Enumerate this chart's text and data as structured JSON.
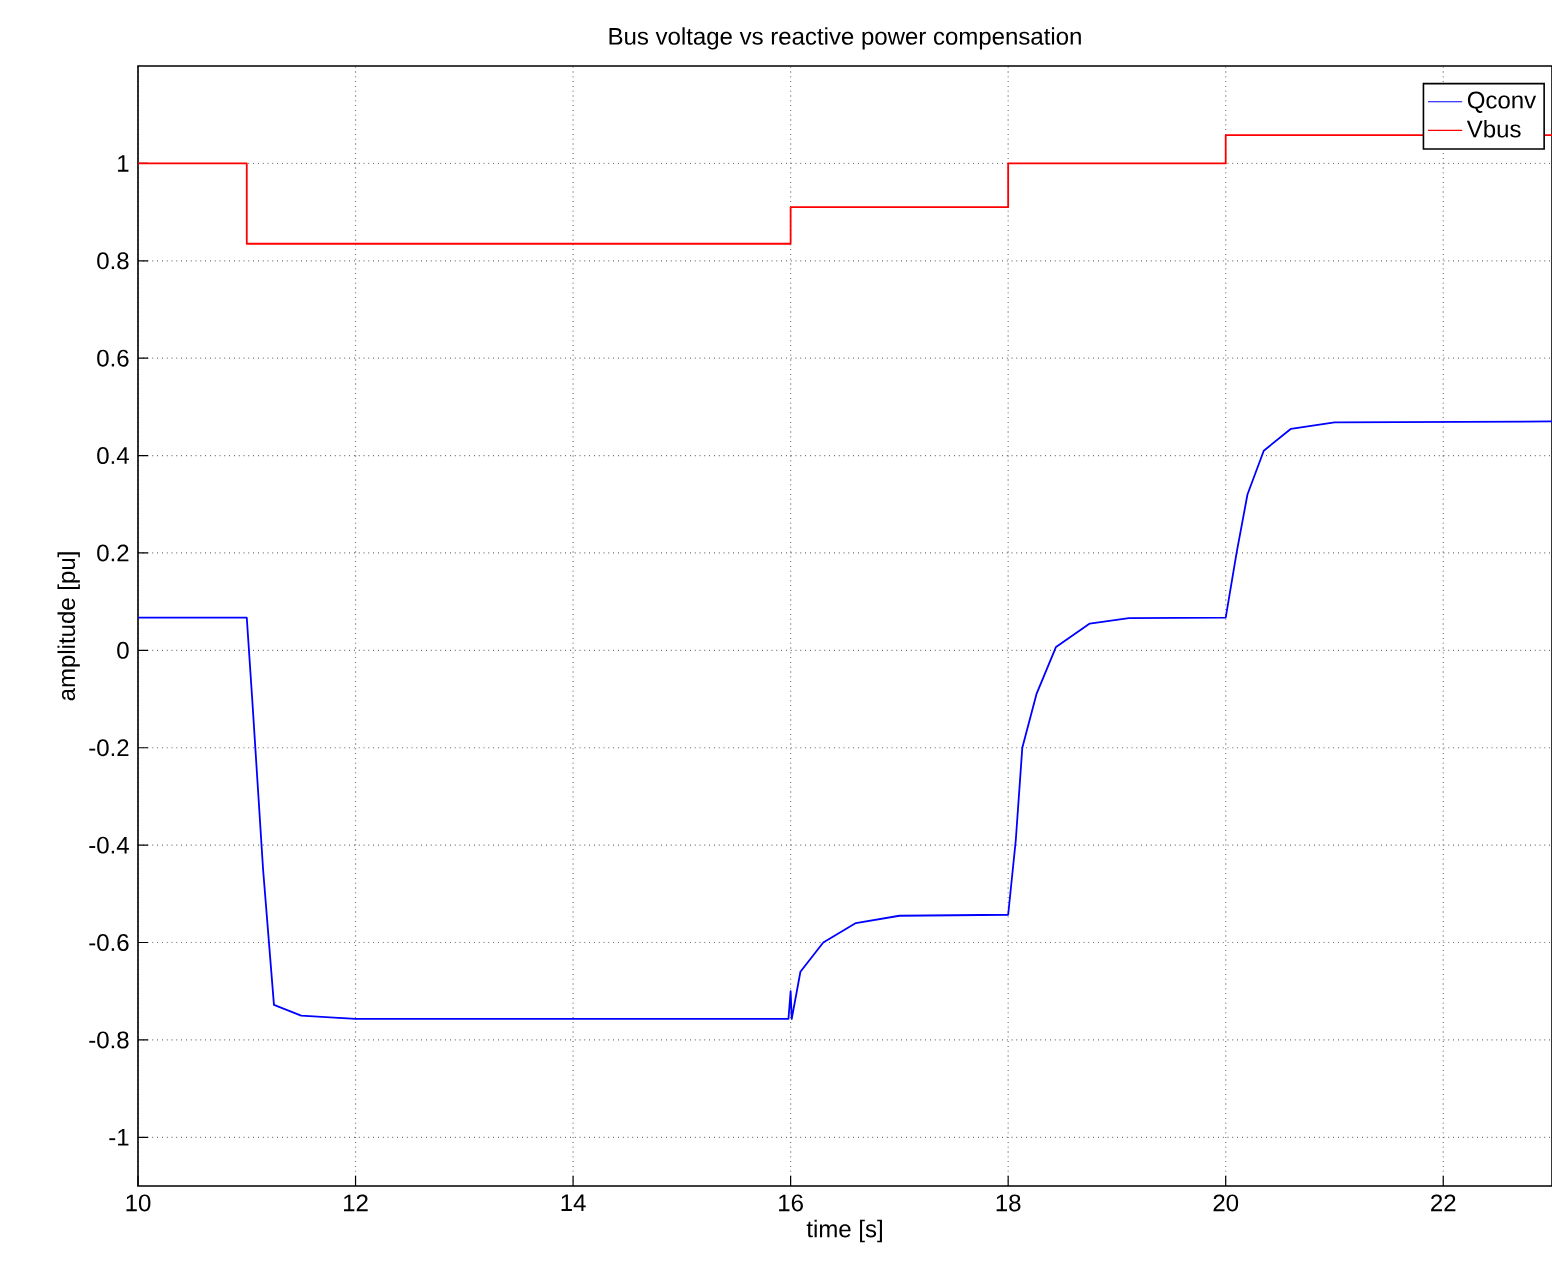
{
  "chart_data": {
    "type": "line",
    "title": "Bus voltage vs reactive power compensation",
    "xlabel": "time [s]",
    "ylabel": "amplitude [pu]",
    "xlim": [
      10,
      23
    ],
    "ylim": [
      -1.1,
      1.2
    ],
    "xticks": [
      10,
      12,
      14,
      16,
      18,
      20,
      22
    ],
    "yticks": [
      -1,
      -0.8,
      -0.6,
      -0.4,
      -0.2,
      0,
      0.2,
      0.4,
      0.6,
      0.8,
      1
    ],
    "grid": true,
    "legend": "top right",
    "marker": "none",
    "line_style": "solid",
    "series": [
      {
        "name": "Qconv",
        "color": "#0000ff",
        "x": [
          10,
          11.0,
          11.05,
          11.15,
          11.25,
          11.5,
          12,
          15.98,
          16.0,
          16.01,
          16.09,
          16.3,
          16.6,
          17,
          18,
          18.07,
          18.13,
          18.26,
          18.44,
          18.75,
          19.11,
          20.0,
          20.1,
          20.2,
          20.35,
          20.6,
          21,
          23
        ],
        "values": [
          0.067,
          0.067,
          -0.1,
          -0.45,
          -0.728,
          -0.75,
          -0.757,
          -0.757,
          -0.7,
          -0.757,
          -0.66,
          -0.6,
          -0.56,
          -0.545,
          -0.543,
          -0.39,
          -0.2,
          -0.09,
          0.007,
          0.055,
          0.066,
          0.067,
          0.2,
          0.32,
          0.41,
          0.455,
          0.468,
          0.47
        ]
      },
      {
        "name": "Vbus",
        "type": "step",
        "color": "#ff0000",
        "x": [
          10,
          11,
          16,
          18,
          20,
          23
        ],
        "values": [
          1,
          0.835,
          0.91,
          1,
          1.058,
          1.058
        ]
      }
    ]
  }
}
